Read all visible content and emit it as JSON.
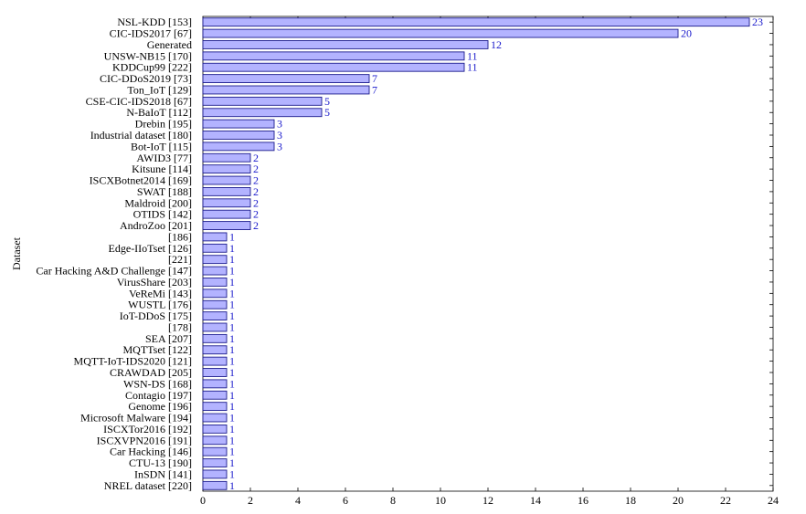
{
  "chart_data": {
    "type": "bar",
    "orientation": "horizontal",
    "ylabel": "Dataset",
    "xlim": [
      0,
      24
    ],
    "xticks": [
      0,
      2,
      4,
      6,
      8,
      10,
      12,
      14,
      16,
      18,
      20,
      22,
      24
    ],
    "grid": false,
    "bar_fill": "#b3b3ff",
    "bar_stroke": "#1a1a8c",
    "value_label_color": "#1a1acc",
    "categories": [
      "NSL-KDD [153]",
      "CIC-IDS2017 [67]",
      "Generated",
      "UNSW-NB15 [170]",
      "KDDCup99 [222]",
      "CIC-DDoS2019 [73]",
      "Ton_IoT [129]",
      "CSE-CIC-IDS2018 [67]",
      "N-BaIoT [112]",
      "Drebin [195]",
      "Industrial dataset [180]",
      "Bot-IoT [115]",
      "AWID3 [77]",
      "Kitsune [114]",
      "ISCXBotnet2014 [169]",
      "SWAT [188]",
      "Maldroid [200]",
      "OTIDS [142]",
      "AndroZoo [201]",
      "[186]",
      "Edge-IIoTset [126]",
      "[221]",
      "Car Hacking A&D Challenge [147]",
      "VirusShare [203]",
      "VeReMi [143]",
      "WUSTL [176]",
      "IoT-DDoS [175]",
      "[178]",
      "SEA [207]",
      "MQTTset [122]",
      "MQTT-IoT-IDS2020 [121]",
      "CRAWDAD [205]",
      "WSN-DS [168]",
      "Contagio [197]",
      "Genome [196]",
      "Microsoft Malware [194]",
      "ISCXTor2016 [192]",
      "ISCXVPN2016 [191]",
      "Car Hacking [146]",
      "CTU-13 [190]",
      "InSDN [141]",
      "NREL dataset [220]"
    ],
    "values": [
      23,
      20,
      12,
      11,
      11,
      7,
      7,
      5,
      5,
      3,
      3,
      3,
      2,
      2,
      2,
      2,
      2,
      2,
      2,
      1,
      1,
      1,
      1,
      1,
      1,
      1,
      1,
      1,
      1,
      1,
      1,
      1,
      1,
      1,
      1,
      1,
      1,
      1,
      1,
      1,
      1,
      1
    ]
  }
}
